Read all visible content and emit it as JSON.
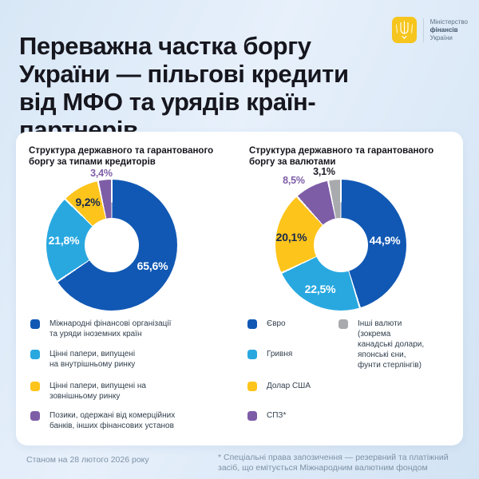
{
  "page": {
    "colors": {
      "background": "#d9e8f7",
      "card": "#ffffff",
      "logo_yellow": "#f6c51e",
      "dark_blue": "#1158b4",
      "light_blue": "#29a8e0",
      "yellow": "#fdc41c",
      "purple": "#7e5da7",
      "gray": "#a9aaad"
    }
  },
  "header": {
    "title": "Переважна частка боргу України — пільгові кредити від МФО та урядів країн-партнерів",
    "title_lines": [
      "Переважна частка боргу",
      "України — пільгові кредити",
      "від МФО та урядів країн-",
      "партнерів"
    ],
    "logo": {
      "emblem": "trident-icon",
      "org_lines": [
        "Міністерство",
        "фінансів",
        "України"
      ]
    }
  },
  "chart_data": [
    {
      "type": "pie",
      "donut": true,
      "title": "Структура державного та гарантованого боргу за типами кредиторів",
      "title_lines": [
        "Структура державного та гарантованого",
        "боргу за типами кредиторів"
      ],
      "unit": "%",
      "legend_position": "bottom",
      "slices": [
        {
          "label": "Міжнародні фінансові організації та уряди іноземних країн",
          "label_lines": [
            "Міжнародні фінансові організації",
            "та уряди іноземних країн"
          ],
          "value": 65.6,
          "display": "65,6%",
          "color": "#1158b4",
          "value_label_color": "#ffffff"
        },
        {
          "label": "Цінні папери, випущені на внутрішньому ринку",
          "label_lines": [
            "Цінні папери, випущені",
            "на внутрішньому ринку"
          ],
          "value": 21.8,
          "display": "21,8%",
          "color": "#29a8e0",
          "value_label_color": "#ffffff"
        },
        {
          "label": "Цінні папери, випущені на зовнішньому ринку",
          "label_lines": [
            "Цінні папери, випущені на",
            "зовнішньому ринку"
          ],
          "value": 9.2,
          "display": "9,2%",
          "color": "#fdc41c",
          "value_label_color": "#17294c"
        },
        {
          "label": "Позики, одержані від комерційних банків, інших фінансових установ",
          "label_lines": [
            "Позики, одержані від комерційних",
            "банків, інших фінансових установ"
          ],
          "value": 3.4,
          "display": "3,4%",
          "color": "#7e5da7",
          "value_label_color": "#7e5da7"
        }
      ]
    },
    {
      "type": "pie",
      "donut": true,
      "title": "Структура державного та гарантованого боргу за валютами",
      "title_lines": [
        "Структура державного та гарантованого",
        "боргу за валютами"
      ],
      "unit": "%",
      "legend_position": "bottom",
      "slices": [
        {
          "label": "Євро",
          "label_lines": [
            "Євро"
          ],
          "value": 44.9,
          "display": "44,9%",
          "color": "#1158b4",
          "value_label_color": "#ffffff"
        },
        {
          "label": "Гривня",
          "label_lines": [
            "Гривня"
          ],
          "value": 22.5,
          "display": "22,5%",
          "color": "#29a8e0",
          "value_label_color": "#ffffff"
        },
        {
          "label": "Долар США",
          "label_lines": [
            "Долар США"
          ],
          "value": 20.1,
          "display": "20,1%",
          "color": "#fdc41c",
          "value_label_color": "#17294c"
        },
        {
          "label": "СПЗ*",
          "label_lines": [
            "СПЗ*"
          ],
          "value": 8.5,
          "display": "8,5%",
          "color": "#7e5da7",
          "value_label_color": "#7e5da7"
        },
        {
          "label": "Інші валюти (зокрема канадські долари, японські єни, фунти стерлінгів)",
          "label_lines": [
            "Інші валюти",
            "(зокрема",
            "канадські долари,",
            "японські єни,",
            "фунти стерлінгів)"
          ],
          "value": 3.1,
          "display": "3,1%",
          "color": "#a9aaad",
          "value_label_color": "#1d1d26"
        }
      ]
    }
  ],
  "footer": {
    "as_of": "Станом на 28 лютого 2026 року",
    "footnote": "* Спеціальні права запозичення — резервний та платіжний засіб, що емітується Міжнародним валютним фондом",
    "footnote_lines": [
      "* Спеціальні права запозичення — резервний та платіжний",
      "засіб, що емітується Міжнародним валютним фондом"
    ]
  }
}
